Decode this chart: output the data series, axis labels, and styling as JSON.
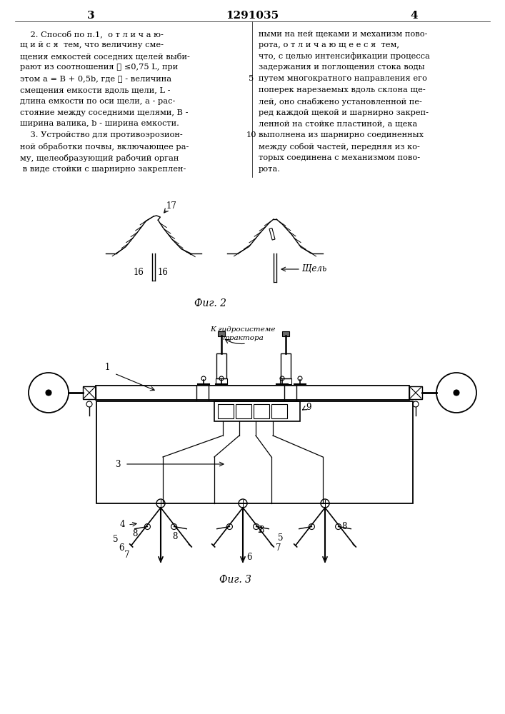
{
  "page_number_left": "3",
  "page_number_center": "1291035",
  "page_number_right": "4",
  "left_column_text": [
    "    2. Способ по п.1,  о т л и ч а ю-",
    "щ и й с я  тем, что величину сме-",
    "щения емкостей соседних щелей выби-",
    "рают из соотношения ℓ ≤0,75 L, при",
    "этом a = B + 0,5b, где ℓ - величина",
    "смещения емкости вдоль щели, L -",
    "длина емкости по оси щели, a - рас-",
    "стояние между соседними щелями, B -",
    "ширина валика, b - ширина емкости.",
    "    3. Устройство для противоэрозион-",
    "ной обработки почвы, включающее ра-",
    "му, щелеобразующий рабочий орган",
    " в виде стойки с шарнирно закреплен-"
  ],
  "right_column_text": [
    "ными на ней щеками и механизм пово-",
    "рота, о т л и ч а ю щ е е с я  тем,",
    "что, с целью интенсификации процесса",
    "задержания и поглощения стока воды",
    "путем многократного направления его",
    "поперек нарезаемых вдоль склона ще-",
    "лей, оно снабжено установленной пе-",
    "ред каждой щекой и шарнирно закреп-",
    "ленной на стойке пластиной, а щека",
    "выполнена из шарнирно соединенных",
    "между собой частей, передняя из ко-",
    "торых соединена с механизмом пово-",
    "рота."
  ],
  "fig2_label": "Фиг. 2",
  "fig3_label": "Фиг. 3",
  "background_color": "#ffffff",
  "text_color": "#000000"
}
